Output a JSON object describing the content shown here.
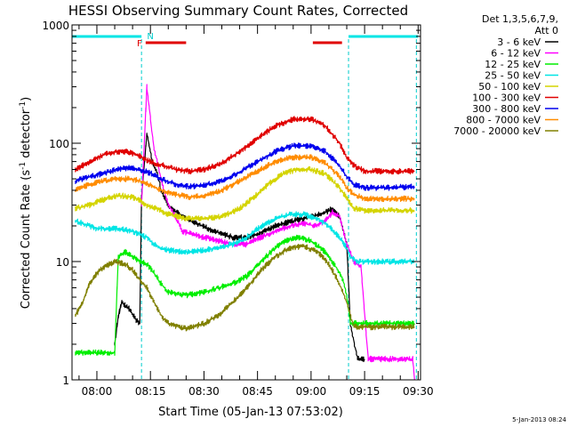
{
  "chart_data": {
    "type": "line",
    "title": "HESSI Observing Summary Count Rates, Corrected",
    "xlabel": "Start Time (05-Jan-13 07:53:02)",
    "ylabel_main": "Corrected Count Rate (s",
    "ylabel_exp1": "-1",
    "ylabel_mid": " detector",
    "ylabel_exp2": "-1",
    "ylabel_end": ")",
    "yscale": "log",
    "ylim": [
      1,
      1000
    ],
    "xlim": [
      "07:53:02",
      "09:30:40"
    ],
    "x_ticks": [
      "08:00",
      "08:15",
      "08:30",
      "08:45",
      "09:00",
      "09:15",
      "09:30"
    ],
    "y_ticks": [
      "1",
      "10",
      "100",
      "1000"
    ],
    "legend_header": [
      "Det 1,3,5,6,7,9,",
      "Att 0"
    ],
    "timestamp": "5-Jan-2013 08:24",
    "annotations": {
      "flare_flag": "F",
      "night_flag": "N"
    },
    "colors": {
      "axis": "#000000",
      "cyan_bar": "#00e5e5",
      "red_bar": "#e00000",
      "dashed_line": "#00cccc"
    },
    "flags": {
      "night": [
        [
          "07:53:02",
          "08:12:30"
        ],
        [
          "09:10:30",
          "09:30:00"
        ]
      ],
      "flare": [
        [
          "08:13:40",
          "08:25:00"
        ],
        [
          "09:00:30",
          "09:08:40"
        ]
      ]
    },
    "markers": [
      "08:12:30",
      "09:10:30",
      "09:29:30"
    ],
    "series": [
      {
        "name": "3 - 6 keV",
        "color": "#000000",
        "points": [
          [
            "08:05:00",
            2.0
          ],
          [
            "08:06:00",
            3.5
          ],
          [
            "08:07:00",
            4.5
          ],
          [
            "08:09:00",
            4.0
          ],
          [
            "08:11:00",
            3.2
          ],
          [
            "08:12:00",
            3.0
          ],
          [
            "08:12:30",
            35
          ],
          [
            "08:14:00",
            120
          ],
          [
            "08:15:30",
            70
          ],
          [
            "08:17:00",
            55
          ],
          [
            "08:18:00",
            40
          ],
          [
            "08:20:00",
            30
          ],
          [
            "08:24:00",
            24
          ],
          [
            "08:28:00",
            21
          ],
          [
            "08:33:00",
            18
          ],
          [
            "08:38:00",
            16
          ],
          [
            "08:42:00",
            16
          ],
          [
            "08:45:00",
            17
          ],
          [
            "08:50:00",
            20
          ],
          [
            "08:55:00",
            22
          ],
          [
            "09:00:00",
            24
          ],
          [
            "09:04:00",
            26
          ],
          [
            "09:06:00",
            28
          ],
          [
            "09:08:00",
            24
          ],
          [
            "09:10:00",
            14
          ],
          [
            "09:11:00",
            3
          ],
          [
            "09:13:00",
            1.5
          ],
          [
            "09:15:00",
            1.5
          ]
        ]
      },
      {
        "name": "6 - 12 keV",
        "color": "#ff00ff",
        "points": [
          [
            "08:12:30",
            30
          ],
          [
            "08:14:00",
            300
          ],
          [
            "08:15:00",
            160
          ],
          [
            "08:16:00",
            90
          ],
          [
            "08:18:00",
            50
          ],
          [
            "08:20:00",
            30
          ],
          [
            "08:22:00",
            24
          ],
          [
            "08:24:00",
            18
          ],
          [
            "08:27:00",
            17
          ],
          [
            "08:30:00",
            16
          ],
          [
            "08:34:00",
            15
          ],
          [
            "08:38:00",
            14
          ],
          [
            "08:42:00",
            14
          ],
          [
            "08:46:00",
            16
          ],
          [
            "08:50:00",
            18
          ],
          [
            "08:54:00",
            20
          ],
          [
            "08:58:00",
            21
          ],
          [
            "09:01:00",
            20
          ],
          [
            "09:04:00",
            22
          ],
          [
            "09:06:00",
            26
          ],
          [
            "09:08:00",
            24
          ],
          [
            "09:10:00",
            14
          ],
          [
            "09:12:00",
            10
          ],
          [
            "09:14:00",
            9
          ],
          [
            "09:16:00",
            1.5
          ],
          [
            "09:28:30",
            1.5
          ],
          [
            "09:29:00",
            1.0
          ]
        ]
      },
      {
        "name": "12 - 25 keV",
        "color": "#00ee00",
        "points": [
          [
            "07:54:00",
            1.7
          ],
          [
            "08:05:00",
            1.7
          ],
          [
            "08:06:00",
            11
          ],
          [
            "08:08:00",
            12
          ],
          [
            "08:10:00",
            11
          ],
          [
            "08:12:00",
            10
          ],
          [
            "08:14:00",
            9.5
          ],
          [
            "08:16:00",
            8
          ],
          [
            "08:18:00",
            6.5
          ],
          [
            "08:20:00",
            5.5
          ],
          [
            "08:25:00",
            5.2
          ],
          [
            "08:30:00",
            5.5
          ],
          [
            "08:34:00",
            6
          ],
          [
            "08:38:00",
            6.5
          ],
          [
            "08:42:00",
            7.5
          ],
          [
            "08:46:00",
            10
          ],
          [
            "08:50:00",
            13
          ],
          [
            "08:53:00",
            15
          ],
          [
            "08:56:00",
            16
          ],
          [
            "09:00:00",
            15
          ],
          [
            "09:04:00",
            12
          ],
          [
            "09:07:00",
            9
          ],
          [
            "09:09:00",
            7
          ],
          [
            "09:10:00",
            5
          ],
          [
            "09:11:00",
            3
          ],
          [
            "09:15:00",
            3
          ],
          [
            "09:20:00",
            3
          ],
          [
            "09:29:00",
            3
          ]
        ]
      },
      {
        "name": "25 - 50 keV",
        "color": "#00e5e5",
        "points": [
          [
            "07:54:00",
            22
          ],
          [
            "07:58:00",
            20
          ],
          [
            "08:00:00",
            19
          ],
          [
            "08:04:00",
            19
          ],
          [
            "08:08:00",
            18.5
          ],
          [
            "08:10:00",
            18
          ],
          [
            "08:12:00",
            17
          ],
          [
            "08:14:00",
            16
          ],
          [
            "08:16:00",
            14
          ],
          [
            "08:18:00",
            13
          ],
          [
            "08:20:00",
            12.5
          ],
          [
            "08:25:00",
            12
          ],
          [
            "08:30:00",
            12.5
          ],
          [
            "08:34:00",
            13
          ],
          [
            "08:38:00",
            14
          ],
          [
            "08:42:00",
            16
          ],
          [
            "08:45:00",
            19
          ],
          [
            "08:50:00",
            23
          ],
          [
            "08:54:00",
            25
          ],
          [
            "08:58:00",
            25
          ],
          [
            "09:02:00",
            23
          ],
          [
            "09:05:00",
            20
          ],
          [
            "09:08:00",
            16
          ],
          [
            "09:10:00",
            13
          ],
          [
            "09:11:00",
            11
          ],
          [
            "09:13:00",
            10
          ],
          [
            "09:20:00",
            10
          ],
          [
            "09:29:00",
            10
          ]
        ]
      },
      {
        "name": "50 - 100 keV",
        "color": "#d4d400",
        "points": [
          [
            "07:54:00",
            28
          ],
          [
            "07:58:00",
            30
          ],
          [
            "08:00:00",
            32
          ],
          [
            "08:04:00",
            35
          ],
          [
            "08:07:00",
            36
          ],
          [
            "08:10:00",
            35
          ],
          [
            "08:12:00",
            33
          ],
          [
            "08:14:00",
            30
          ],
          [
            "08:17:00",
            28
          ],
          [
            "08:20:00",
            25
          ],
          [
            "08:25:00",
            23
          ],
          [
            "08:30:00",
            23
          ],
          [
            "08:35:00",
            24
          ],
          [
            "08:40:00",
            28
          ],
          [
            "08:44:00",
            35
          ],
          [
            "08:48:00",
            45
          ],
          [
            "08:52:00",
            55
          ],
          [
            "08:56:00",
            60
          ],
          [
            "09:00:00",
            60
          ],
          [
            "09:04:00",
            55
          ],
          [
            "09:07:00",
            45
          ],
          [
            "09:10:00",
            35
          ],
          [
            "09:12:00",
            28
          ],
          [
            "09:15:00",
            27
          ],
          [
            "09:20:00",
            27
          ],
          [
            "09:29:00",
            27
          ]
        ]
      },
      {
        "name": "100 - 300 keV",
        "color": "#e00000",
        "points": [
          [
            "07:54:00",
            60
          ],
          [
            "07:58:00",
            70
          ],
          [
            "08:02:00",
            80
          ],
          [
            "08:06:00",
            85
          ],
          [
            "08:08:00",
            85
          ],
          [
            "08:10:00",
            82
          ],
          [
            "08:12:00",
            78
          ],
          [
            "08:14:00",
            72
          ],
          [
            "08:16:00",
            68
          ],
          [
            "08:18:00",
            66
          ],
          [
            "08:22:00",
            60
          ],
          [
            "08:26:00",
            58
          ],
          [
            "08:30:00",
            60
          ],
          [
            "08:35:00",
            68
          ],
          [
            "08:40:00",
            85
          ],
          [
            "08:45:00",
            110
          ],
          [
            "08:50:00",
            140
          ],
          [
            "08:55:00",
            160
          ],
          [
            "09:00:00",
            160
          ],
          [
            "09:04:00",
            140
          ],
          [
            "09:08:00",
            100
          ],
          [
            "09:10:00",
            75
          ],
          [
            "09:12:00",
            65
          ],
          [
            "09:15:00",
            58
          ],
          [
            "09:20:00",
            58
          ],
          [
            "09:29:00",
            58
          ]
        ]
      },
      {
        "name": "300 - 800 keV",
        "color": "#0000ee",
        "points": [
          [
            "07:54:00",
            48
          ],
          [
            "07:58:00",
            52
          ],
          [
            "08:02:00",
            56
          ],
          [
            "08:06:00",
            60
          ],
          [
            "08:09:00",
            62
          ],
          [
            "08:12:00",
            60
          ],
          [
            "08:15:00",
            56
          ],
          [
            "08:18:00",
            50
          ],
          [
            "08:22:00",
            45
          ],
          [
            "08:26:00",
            43
          ],
          [
            "08:30:00",
            44
          ],
          [
            "08:35:00",
            48
          ],
          [
            "08:40:00",
            57
          ],
          [
            "08:45:00",
            70
          ],
          [
            "08:50:00",
            85
          ],
          [
            "08:55:00",
            95
          ],
          [
            "09:00:00",
            95
          ],
          [
            "09:04:00",
            85
          ],
          [
            "09:08:00",
            65
          ],
          [
            "09:10:00",
            52
          ],
          [
            "09:12:00",
            45
          ],
          [
            "09:15:00",
            42
          ],
          [
            "09:20:00",
            42
          ],
          [
            "09:29:00",
            43
          ]
        ]
      },
      {
        "name": "800 - 7000 keV",
        "color": "#ff8c00",
        "points": [
          [
            "07:54:00",
            40
          ],
          [
            "07:58:00",
            45
          ],
          [
            "08:02:00",
            48
          ],
          [
            "08:06:00",
            50
          ],
          [
            "08:09:00",
            50
          ],
          [
            "08:12:00",
            48
          ],
          [
            "08:15:00",
            44
          ],
          [
            "08:18:00",
            40
          ],
          [
            "08:22:00",
            37
          ],
          [
            "08:26:00",
            35
          ],
          [
            "08:30:00",
            36
          ],
          [
            "08:35:00",
            40
          ],
          [
            "08:40:00",
            48
          ],
          [
            "08:45:00",
            58
          ],
          [
            "08:50:00",
            70
          ],
          [
            "08:55:00",
            76
          ],
          [
            "09:00:00",
            76
          ],
          [
            "09:04:00",
            68
          ],
          [
            "09:08:00",
            52
          ],
          [
            "09:10:00",
            42
          ],
          [
            "09:12:00",
            37
          ],
          [
            "09:15:00",
            34
          ],
          [
            "09:20:00",
            34
          ],
          [
            "09:29:00",
            34
          ]
        ]
      },
      {
        "name": "7000 - 20000 keV",
        "color": "#808000",
        "points": [
          [
            "07:54:00",
            3.5
          ],
          [
            "07:56:00",
            4.5
          ],
          [
            "07:58:00",
            6.5
          ],
          [
            "08:00:00",
            8
          ],
          [
            "08:02:00",
            9
          ],
          [
            "08:05:00",
            10
          ],
          [
            "08:08:00",
            9.5
          ],
          [
            "08:10:00",
            8.5
          ],
          [
            "08:12:00",
            7
          ],
          [
            "08:14:00",
            6
          ],
          [
            "08:16:00",
            4.5
          ],
          [
            "08:18:00",
            3.5
          ],
          [
            "08:20:00",
            3.0
          ],
          [
            "08:25:00",
            2.7
          ],
          [
            "08:30:00",
            3.0
          ],
          [
            "08:34:00",
            3.5
          ],
          [
            "08:38:00",
            4.5
          ],
          [
            "08:42:00",
            6
          ],
          [
            "08:46:00",
            8.5
          ],
          [
            "08:50:00",
            11
          ],
          [
            "08:54:00",
            13
          ],
          [
            "08:58:00",
            13.5
          ],
          [
            "09:02:00",
            12
          ],
          [
            "09:05:00",
            9.5
          ],
          [
            "09:08:00",
            6.5
          ],
          [
            "09:10:00",
            4.5
          ],
          [
            "09:12:00",
            2.8
          ],
          [
            "09:20:00",
            2.8
          ],
          [
            "09:29:00",
            2.8
          ]
        ]
      }
    ]
  }
}
